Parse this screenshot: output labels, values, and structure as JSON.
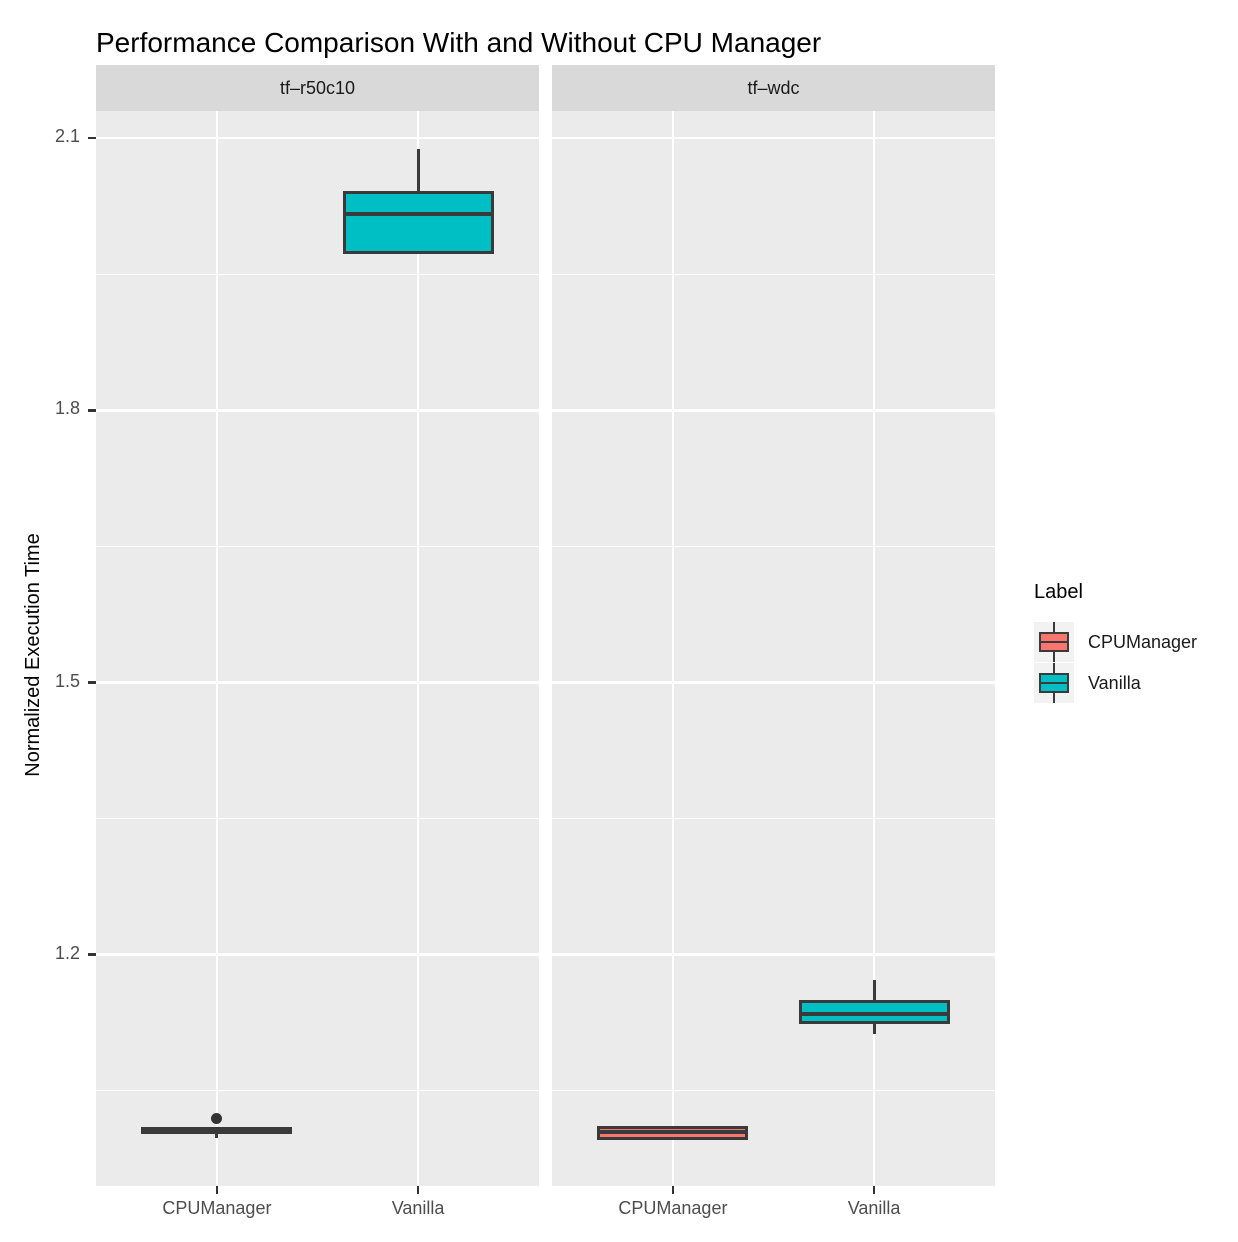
{
  "title": "Performance Comparison With and Without CPU Manager",
  "chart_data": {
    "type": "boxplot",
    "title": "Performance Comparison With and Without CPU Manager",
    "xlabel": "",
    "ylabel": "Normalized Execution Time",
    "ylim": [
      0.945,
      2.13
    ],
    "y_ticks": [
      2.1,
      1.8,
      1.5,
      1.2
    ],
    "y_minor_gridlines": [
      1.95,
      1.65,
      1.35,
      1.05
    ],
    "grid": true,
    "categories": [
      "CPUManager",
      "Vanilla"
    ],
    "facets": [
      {
        "label": "tf–r50c10",
        "boxes": [
          {
            "group": "CPUManager",
            "color": "#F8766D",
            "min": 0.998,
            "q1": 1.002,
            "median": 1.006,
            "q3": 1.01,
            "max": 1.01,
            "outliers": [
              1.019
            ]
          },
          {
            "group": "Vanilla",
            "color": "#00BFC4",
            "min": 1.972,
            "q1": 1.972,
            "median": 2.016,
            "q3": 2.042,
            "max": 2.088,
            "outliers": []
          }
        ]
      },
      {
        "label": "tf–wdc",
        "boxes": [
          {
            "group": "CPUManager",
            "color": "#F8766D",
            "min": 0.996,
            "q1": 0.996,
            "median": 1.004,
            "q3": 1.011,
            "max": 1.011,
            "outliers": []
          },
          {
            "group": "Vanilla",
            "color": "#00BFC4",
            "min": 1.112,
            "q1": 1.124,
            "median": 1.135,
            "q3": 1.15,
            "max": 1.172,
            "outliers": []
          }
        ]
      }
    ],
    "legend": {
      "title": "Label",
      "position": "right",
      "entries": [
        {
          "label": "CPUManager",
          "color": "#F8766D"
        },
        {
          "label": "Vanilla",
          "color": "#00BFC4"
        }
      ]
    },
    "colors": {
      "box_border": "#3A3A3A",
      "panel_bg": "#EBEBEB",
      "strip_bg": "#D9D9D9",
      "grid": "#FFFFFF",
      "axis_text": "#4D4D4D",
      "tick_mark": "#333333",
      "legend_key_bg": "#F2F2F2",
      "outlier": "#333333"
    }
  }
}
